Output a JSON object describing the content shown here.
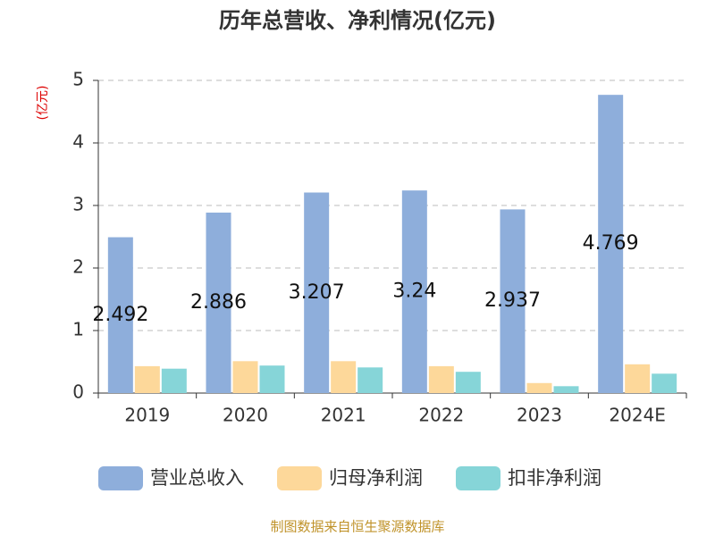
{
  "chart_data": {
    "type": "bar",
    "title": "历年总营收、净利情况(亿元)",
    "y_label": "(亿元)",
    "categories": [
      "2019",
      "2020",
      "2021",
      "2022",
      "2023",
      "2024E"
    ],
    "series": [
      {
        "name": "营业总收入",
        "color": "#8eaedb",
        "values": [
          2.492,
          2.886,
          3.207,
          3.24,
          2.937,
          4.769
        ]
      },
      {
        "name": "归母净利润",
        "color": "#fdd89a",
        "values": [
          0.43,
          0.51,
          0.51,
          0.43,
          0.16,
          0.46
        ]
      },
      {
        "name": "扣非净利润",
        "color": "#86d5d8",
        "values": [
          0.39,
          0.44,
          0.41,
          0.34,
          0.11,
          0.31
        ]
      }
    ],
    "label_series": 0,
    "ylim": [
      0,
      5
    ],
    "yticks": [
      0,
      1,
      2,
      3,
      4,
      5
    ],
    "grid": true,
    "source": "制图数据来自恒生聚源数据库"
  }
}
